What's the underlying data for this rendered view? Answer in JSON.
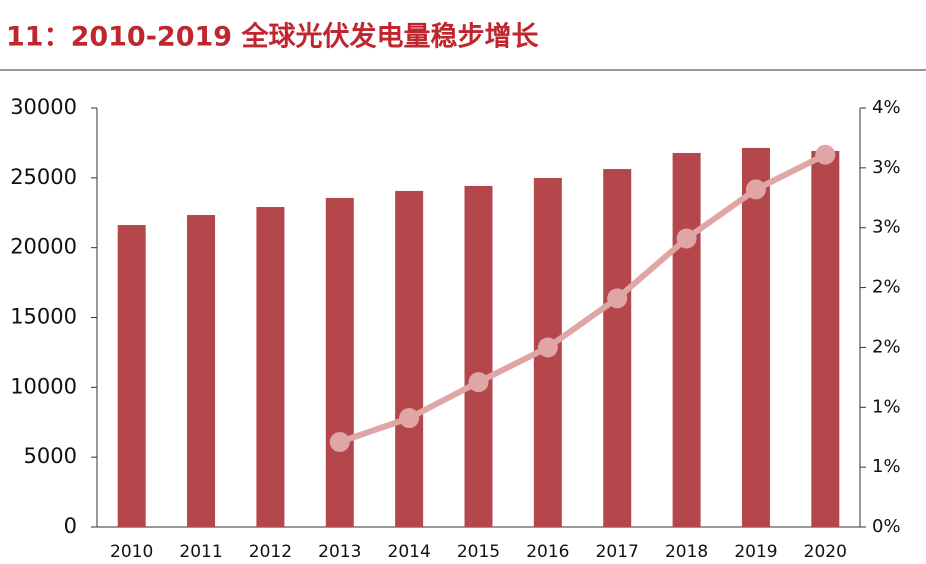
{
  "chart_data": {
    "type": "bar-line",
    "title": "11：2010-2019 全球光伏发电量稳步增长",
    "categories": [
      "2010",
      "2011",
      "2012",
      "2013",
      "2014",
      "2015",
      "2016",
      "2017",
      "2018",
      "2019",
      "2020"
    ],
    "series": [
      {
        "type": "bar",
        "color": "#b4474b",
        "values": [
          21620,
          22340,
          22910,
          23560,
          24060,
          24420,
          24990,
          25630,
          26780,
          27140,
          26920
        ]
      },
      {
        "type": "line",
        "color": "#e0a5a5",
        "axis": "y2",
        "values": [
          null,
          null,
          null,
          0.71,
          0.91,
          1.21,
          1.5,
          1.91,
          2.41,
          2.82,
          3.11
        ]
      }
    ],
    "ylim": [
      0,
      30000
    ],
    "yticks": [
      0,
      5000,
      10000,
      15000,
      20000,
      25000,
      30000
    ],
    "y2lim": [
      0,
      3.5
    ],
    "y2ticks": [
      {
        "value": 0,
        "label": "0%"
      },
      {
        "value": 0.5,
        "label": "1%"
      },
      {
        "value": 1,
        "label": "1%"
      },
      {
        "value": 1.5,
        "label": "2%"
      },
      {
        "value": 2,
        "label": "2%"
      },
      {
        "value": 2.5,
        "label": "3%"
      },
      {
        "value": 3,
        "label": "3%"
      },
      {
        "value": 3.5,
        "label": "4%"
      }
    ]
  }
}
